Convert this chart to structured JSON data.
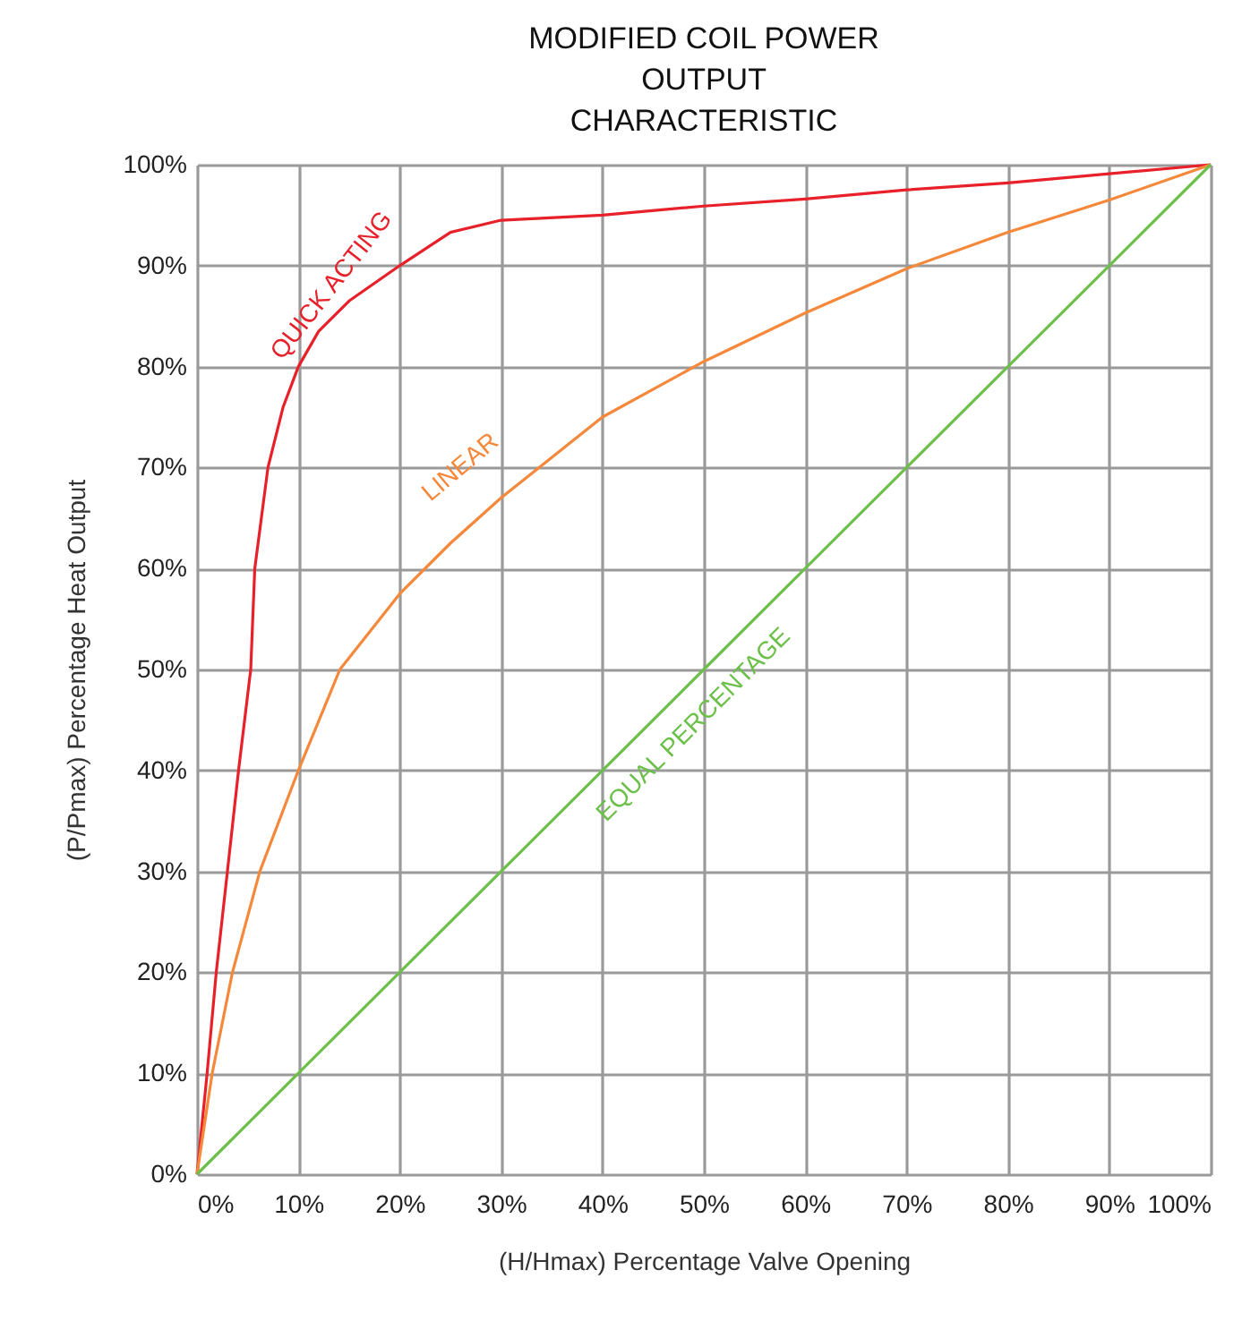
{
  "chart_data": {
    "type": "line",
    "title": "MODIFIED COIL POWER\nOUTPUT\nCHARACTERISTIC",
    "xlabel": "(H/Hmax) Percentage Valve Opening",
    "ylabel": "(P/Pmax) Percentage Heat Output",
    "xlim": [
      0,
      100
    ],
    "ylim": [
      0,
      100
    ],
    "xticks": [
      {
        "value": 0,
        "label": "0%"
      },
      {
        "value": 10,
        "label": "10%"
      },
      {
        "value": 20,
        "label": "20%"
      },
      {
        "value": 30,
        "label": "30%"
      },
      {
        "value": 40,
        "label": "40%"
      },
      {
        "value": 50,
        "label": "50%"
      },
      {
        "value": 60,
        "label": "60%"
      },
      {
        "value": 70,
        "label": "70%"
      },
      {
        "value": 80,
        "label": "80%"
      },
      {
        "value": 90,
        "label": "90%"
      },
      {
        "value": 100,
        "label": "100%"
      }
    ],
    "yticks": [
      {
        "value": 0,
        "label": "0%"
      },
      {
        "value": 10,
        "label": "10%"
      },
      {
        "value": 20,
        "label": "20%"
      },
      {
        "value": 30,
        "label": "30%"
      },
      {
        "value": 40,
        "label": "40%"
      },
      {
        "value": 50,
        "label": "50%"
      },
      {
        "value": 60,
        "label": "60%"
      },
      {
        "value": 70,
        "label": "70%"
      },
      {
        "value": 80,
        "label": "80%"
      },
      {
        "value": 90,
        "label": "90%"
      },
      {
        "value": 100,
        "label": "100%"
      }
    ],
    "grid": true,
    "legend": false,
    "marker": "none",
    "line_style": "solid",
    "series": [
      {
        "name": "QUICK ACTING",
        "color": "#e8202a",
        "x": [
          0,
          1,
          1.9,
          3,
          4.1,
          5.3,
          5.7,
          7,
          8.5,
          10,
          12,
          15,
          20,
          25,
          30,
          40,
          50,
          60,
          70,
          80,
          90,
          100
        ],
        "values": [
          0,
          10,
          20,
          30,
          40,
          50,
          60,
          70,
          76,
          80,
          83.5,
          86.5,
          90,
          93.3,
          94.5,
          95,
          95.9,
          96.6,
          97.5,
          98.2,
          99.1,
          100
        ]
      },
      {
        "name": "LINEAR",
        "color": "#f5883a",
        "x": [
          0,
          1.5,
          3.5,
          6.2,
          10,
          14.1,
          20,
          25,
          30,
          40,
          50,
          60,
          70,
          80,
          90,
          100
        ],
        "values": [
          0,
          10,
          20,
          30,
          40,
          50,
          57.5,
          62.5,
          67,
          75,
          80.5,
          85.3,
          89.7,
          93.3,
          96.5,
          100
        ]
      },
      {
        "name": "EQUAL PERCENTAGE",
        "color": "#6cc04a",
        "x": [
          0,
          10,
          20,
          30,
          40,
          50,
          60,
          70,
          80,
          90,
          100
        ],
        "values": [
          0,
          10,
          20,
          30,
          40,
          50,
          60,
          70,
          80,
          90,
          100
        ]
      }
    ]
  }
}
